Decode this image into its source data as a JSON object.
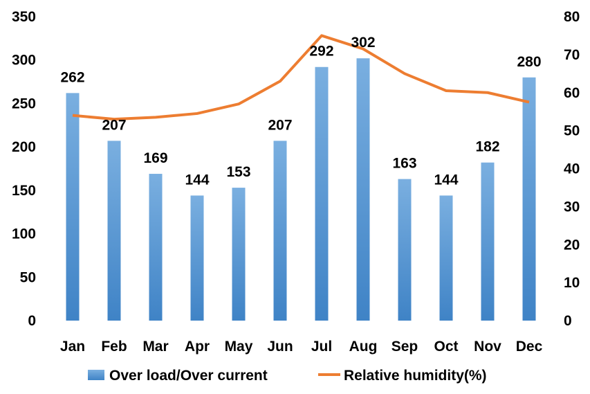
{
  "chart_data": {
    "type": "bar+line",
    "categories": [
      "Jan",
      "Feb",
      "Mar",
      "Apr",
      "May",
      "Jun",
      "Jul",
      "Aug",
      "Sep",
      "Oct",
      "Nov",
      "Dec"
    ],
    "series": [
      {
        "name": "Over load/Over current",
        "type": "bar",
        "axis": "left",
        "values": [
          262,
          207,
          169,
          144,
          153,
          207,
          292,
          302,
          163,
          144,
          182,
          280
        ],
        "color": "#5b9bd5"
      },
      {
        "name": "Relative humidity(%)",
        "type": "line",
        "axis": "right",
        "values": [
          54,
          53,
          53.5,
          54.5,
          57,
          63,
          75,
          71.5,
          65,
          60.5,
          60,
          57.5
        ],
        "color": "#ed7d31"
      }
    ],
    "y_left": {
      "min": 0,
      "max": 350,
      "ticks": [
        "0",
        "50",
        "100",
        "150",
        "200",
        "250",
        "300",
        "350"
      ]
    },
    "y_right": {
      "min": 0,
      "max": 80,
      "ticks": [
        "0",
        "10",
        "20",
        "30",
        "40",
        "50",
        "60",
        "70",
        "80"
      ]
    },
    "data_labels": [
      "262",
      "207",
      "169",
      "144",
      "153",
      "207",
      "292",
      "302",
      "163",
      "144",
      "182",
      "280"
    ],
    "grid": false,
    "legend": "bottom"
  }
}
